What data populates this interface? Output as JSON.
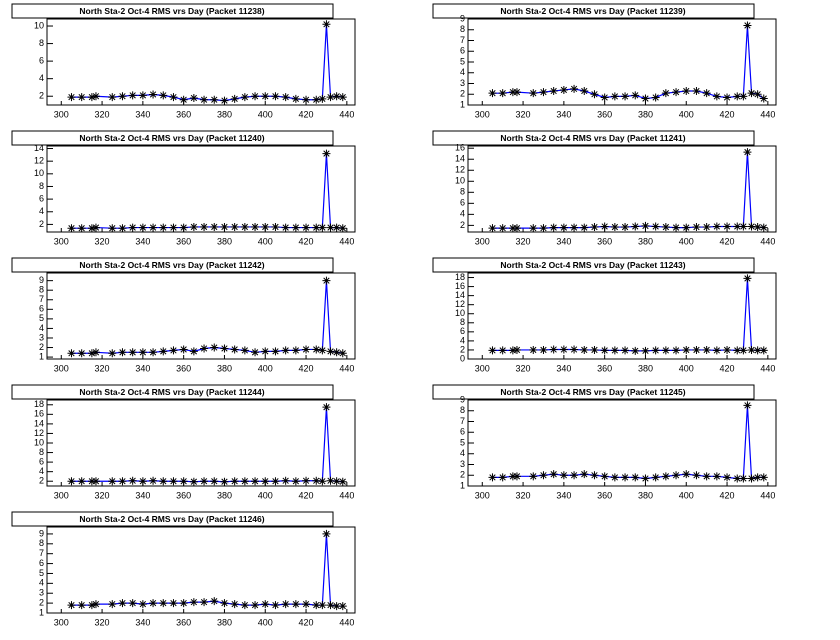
{
  "chart_data": [
    {
      "type": "line",
      "title": "North Sta-2 Oct-4 RMS vrs Day (Packet 11238)",
      "color": "#0000ff",
      "marker_color": "#000000",
      "x": [
        305,
        310,
        315,
        317,
        325,
        330,
        335,
        340,
        345,
        350,
        355,
        360,
        365,
        370,
        375,
        380,
        385,
        390,
        395,
        400,
        405,
        410,
        415,
        420,
        425,
        428,
        430,
        432,
        435,
        438
      ],
      "values": [
        1.9,
        1.9,
        1.9,
        2.0,
        1.9,
        2.0,
        2.1,
        2.1,
        2.2,
        2.1,
        1.9,
        1.6,
        1.8,
        1.6,
        1.6,
        1.5,
        1.7,
        1.9,
        2.0,
        2.0,
        2.0,
        1.9,
        1.7,
        1.6,
        1.6,
        1.7,
        10.2,
        1.9,
        2.0,
        1.9
      ],
      "xlim": [
        293,
        444
      ],
      "xticks": [
        300,
        320,
        340,
        360,
        380,
        400,
        420,
        440
      ],
      "ylim": [
        1,
        10.8
      ],
      "yticks": [
        2,
        4,
        6,
        8,
        10
      ]
    },
    {
      "type": "line",
      "title": "North Sta-2 Oct-4 RMS vrs Day (Packet 11239)",
      "color": "#0000ff",
      "marker_color": "#000000",
      "x": [
        305,
        310,
        315,
        317,
        325,
        330,
        335,
        340,
        345,
        350,
        355,
        360,
        365,
        370,
        375,
        380,
        385,
        390,
        395,
        400,
        405,
        410,
        415,
        420,
        425,
        428,
        430,
        432,
        435,
        438
      ],
      "values": [
        2.1,
        2.1,
        2.2,
        2.2,
        2.1,
        2.2,
        2.3,
        2.4,
        2.5,
        2.3,
        2.0,
        1.7,
        1.8,
        1.8,
        1.9,
        1.6,
        1.7,
        2.1,
        2.2,
        2.3,
        2.3,
        2.1,
        1.8,
        1.7,
        1.8,
        1.8,
        8.4,
        2.1,
        2.0,
        1.6
      ],
      "xlim": [
        293,
        444
      ],
      "xticks": [
        300,
        320,
        340,
        360,
        380,
        400,
        420,
        440
      ],
      "ylim": [
        1,
        9
      ],
      "yticks": [
        1,
        2,
        3,
        4,
        5,
        6,
        7,
        8,
        9
      ]
    },
    {
      "type": "line",
      "title": "North Sta-2 Oct-4 RMS vrs Day (Packet 11240)",
      "color": "#0000ff",
      "marker_color": "#000000",
      "x": [
        305,
        310,
        315,
        317,
        325,
        330,
        335,
        340,
        345,
        350,
        355,
        360,
        365,
        370,
        375,
        380,
        385,
        390,
        395,
        400,
        405,
        410,
        415,
        420,
        425,
        428,
        430,
        432,
        435,
        438
      ],
      "values": [
        1.4,
        1.4,
        1.4,
        1.5,
        1.4,
        1.4,
        1.5,
        1.5,
        1.5,
        1.5,
        1.5,
        1.5,
        1.6,
        1.6,
        1.6,
        1.6,
        1.6,
        1.6,
        1.6,
        1.6,
        1.6,
        1.5,
        1.5,
        1.5,
        1.5,
        1.5,
        13.2,
        1.5,
        1.5,
        1.4
      ],
      "xlim": [
        293,
        444
      ],
      "xticks": [
        300,
        320,
        340,
        360,
        380,
        400,
        420,
        440
      ],
      "ylim": [
        0.8,
        14.4
      ],
      "yticks": [
        2,
        4,
        6,
        8,
        10,
        12,
        14
      ]
    },
    {
      "type": "line",
      "title": "North Sta-2 Oct-4 RMS vrs Day (Packet 11241)",
      "color": "#0000ff",
      "marker_color": "#000000",
      "x": [
        305,
        310,
        315,
        317,
        325,
        330,
        335,
        340,
        345,
        350,
        355,
        360,
        365,
        370,
        375,
        380,
        385,
        390,
        395,
        400,
        405,
        410,
        415,
        420,
        425,
        428,
        430,
        432,
        435,
        438
      ],
      "values": [
        1.5,
        1.5,
        1.5,
        1.5,
        1.5,
        1.5,
        1.6,
        1.6,
        1.6,
        1.6,
        1.7,
        1.8,
        1.7,
        1.7,
        1.8,
        1.9,
        1.8,
        1.7,
        1.6,
        1.6,
        1.7,
        1.7,
        1.8,
        1.8,
        1.8,
        1.8,
        15.3,
        1.8,
        1.7,
        1.6
      ],
      "xlim": [
        293,
        444
      ],
      "xticks": [
        300,
        320,
        340,
        360,
        380,
        400,
        420,
        440
      ],
      "ylim": [
        0.8,
        16.4
      ],
      "yticks": [
        2,
        4,
        6,
        8,
        10,
        12,
        14,
        16
      ]
    },
    {
      "type": "line",
      "title": "North Sta-2 Oct-4 RMS vrs Day (Packet 11242)",
      "color": "#0000ff",
      "marker_color": "#000000",
      "x": [
        305,
        310,
        315,
        317,
        325,
        330,
        335,
        340,
        345,
        350,
        355,
        360,
        365,
        370,
        375,
        380,
        385,
        390,
        395,
        400,
        405,
        410,
        415,
        420,
        425,
        428,
        430,
        432,
        435,
        438
      ],
      "values": [
        1.4,
        1.4,
        1.4,
        1.5,
        1.4,
        1.5,
        1.5,
        1.5,
        1.5,
        1.6,
        1.7,
        1.8,
        1.6,
        1.9,
        2.0,
        1.9,
        1.8,
        1.7,
        1.5,
        1.6,
        1.6,
        1.7,
        1.7,
        1.8,
        1.8,
        1.7,
        9.0,
        1.6,
        1.5,
        1.4
      ],
      "xlim": [
        293,
        444
      ],
      "xticks": [
        300,
        320,
        340,
        360,
        380,
        400,
        420,
        440
      ],
      "ylim": [
        0.8,
        9.8
      ],
      "yticks": [
        1,
        2,
        3,
        4,
        5,
        6,
        7,
        8,
        9
      ]
    },
    {
      "type": "line",
      "title": "North Sta-2 Oct-4 RMS vrs Day (Packet 11243)",
      "color": "#0000ff",
      "marker_color": "#000000",
      "x": [
        305,
        310,
        315,
        317,
        325,
        330,
        335,
        340,
        345,
        350,
        355,
        360,
        365,
        370,
        375,
        380,
        385,
        390,
        395,
        400,
        405,
        410,
        415,
        420,
        425,
        428,
        430,
        432,
        435,
        438
      ],
      "values": [
        1.9,
        1.9,
        1.9,
        2.0,
        2.0,
        2.0,
        2.1,
        2.1,
        2.1,
        2.0,
        2.0,
        1.9,
        1.9,
        1.9,
        1.8,
        1.8,
        1.9,
        1.9,
        1.9,
        2.0,
        2.0,
        2.0,
        1.9,
        2.0,
        1.9,
        1.9,
        17.8,
        2.0,
        1.9,
        1.9
      ],
      "xlim": [
        293,
        444
      ],
      "xticks": [
        300,
        320,
        340,
        360,
        380,
        400,
        420,
        440
      ],
      "ylim": [
        0,
        19
      ],
      "yticks": [
        0,
        2,
        4,
        6,
        8,
        10,
        12,
        14,
        16,
        18
      ]
    },
    {
      "type": "line",
      "title": "North Sta-2 Oct-4 RMS vrs Day (Packet 11244)",
      "color": "#0000ff",
      "marker_color": "#000000",
      "x": [
        305,
        310,
        315,
        317,
        325,
        330,
        335,
        340,
        345,
        350,
        355,
        360,
        365,
        370,
        375,
        380,
        385,
        390,
        395,
        400,
        405,
        410,
        415,
        420,
        425,
        428,
        430,
        432,
        435,
        438
      ],
      "values": [
        2.0,
        2.0,
        2.0,
        2.0,
        2.0,
        2.0,
        2.1,
        2.0,
        2.1,
        2.0,
        2.0,
        2.0,
        1.9,
        2.0,
        2.0,
        1.9,
        2.0,
        2.0,
        2.0,
        2.0,
        2.0,
        2.1,
        2.0,
        2.1,
        2.1,
        2.0,
        17.5,
        2.1,
        2.0,
        1.9
      ],
      "xlim": [
        293,
        444
      ],
      "xticks": [
        300,
        320,
        340,
        360,
        380,
        400,
        420,
        440
      ],
      "ylim": [
        1,
        19
      ],
      "yticks": [
        2,
        4,
        6,
        8,
        10,
        12,
        14,
        16,
        18
      ]
    },
    {
      "type": "line",
      "title": "North Sta-2 Oct-4 RMS vrs Day (Packet 11245)",
      "color": "#0000ff",
      "marker_color": "#000000",
      "x": [
        305,
        310,
        315,
        317,
        325,
        330,
        335,
        340,
        345,
        350,
        355,
        360,
        365,
        370,
        375,
        380,
        385,
        390,
        395,
        400,
        405,
        410,
        415,
        420,
        425,
        428,
        430,
        432,
        435,
        438
      ],
      "values": [
        1.8,
        1.8,
        1.9,
        1.9,
        1.9,
        2.0,
        2.1,
        2.0,
        2.0,
        2.1,
        2.0,
        1.9,
        1.8,
        1.8,
        1.8,
        1.7,
        1.8,
        1.9,
        2.0,
        2.1,
        2.0,
        1.9,
        1.9,
        1.8,
        1.7,
        1.7,
        8.5,
        1.7,
        1.8,
        1.8
      ],
      "xlim": [
        293,
        444
      ],
      "xticks": [
        300,
        320,
        340,
        360,
        380,
        400,
        420,
        440
      ],
      "ylim": [
        1,
        9
      ],
      "yticks": [
        1,
        2,
        3,
        4,
        5,
        6,
        7,
        8,
        9
      ]
    },
    {
      "type": "line",
      "title": "North Sta-2 Oct-4 RMS vrs Day (Packet 11246)",
      "color": "#0000ff",
      "marker_color": "#000000",
      "x": [
        305,
        310,
        315,
        317,
        325,
        330,
        335,
        340,
        345,
        350,
        355,
        360,
        365,
        370,
        375,
        380,
        385,
        390,
        395,
        400,
        405,
        410,
        415,
        420,
        425,
        428,
        430,
        432,
        435,
        438
      ],
      "values": [
        1.8,
        1.8,
        1.8,
        1.9,
        1.9,
        2.0,
        2.0,
        1.9,
        2.0,
        2.0,
        2.0,
        2.0,
        2.1,
        2.1,
        2.2,
        2.0,
        1.9,
        1.8,
        1.8,
        1.9,
        1.8,
        1.9,
        1.9,
        1.9,
        1.8,
        1.8,
        9.0,
        1.8,
        1.7,
        1.7
      ],
      "xlim": [
        293,
        444
      ],
      "xticks": [
        300,
        320,
        340,
        360,
        380,
        400,
        420,
        440
      ],
      "ylim": [
        1,
        9.7
      ],
      "yticks": [
        1,
        2,
        3,
        4,
        5,
        6,
        7,
        8,
        9
      ]
    }
  ]
}
